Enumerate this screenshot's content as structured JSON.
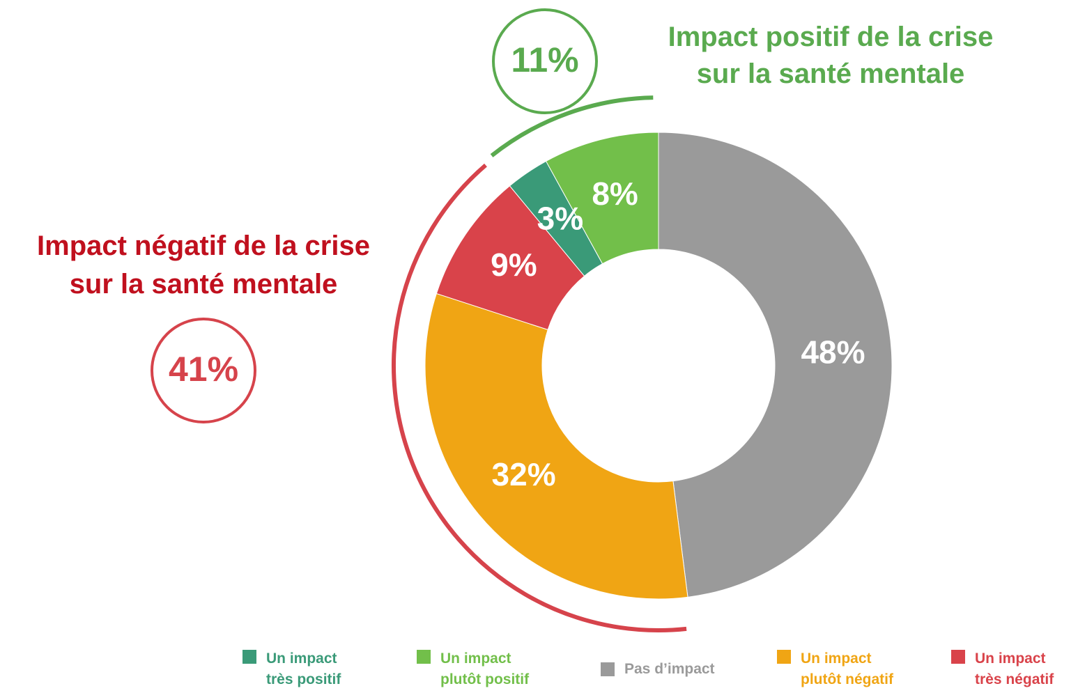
{
  "chart_data": {
    "type": "donut",
    "categories": [
      "Pas d’impact",
      "Un impact plutôt négatif",
      "Un impact très négatif",
      "Un impact très positif",
      "Un impact plutôt positif"
    ],
    "values": [
      48,
      32,
      9,
      3,
      8
    ],
    "value_labels": [
      "48%",
      "32%",
      "9%",
      "3%",
      "8%"
    ],
    "colors": [
      "#9a9a9a",
      "#f0a514",
      "#d9434a",
      "#3a9a78",
      "#72bf4a"
    ],
    "legend_order": [
      3,
      4,
      0,
      1,
      2
    ],
    "groups": [
      {
        "title": "Impact positif de la crise sur la santé mentale",
        "value": 11,
        "label": "11%",
        "color": "#5aaa4f"
      },
      {
        "title": "Impact négatif de la crise sur la santé mentale",
        "value": 41,
        "label": "41%",
        "color": "#c0101e"
      }
    ]
  }
}
